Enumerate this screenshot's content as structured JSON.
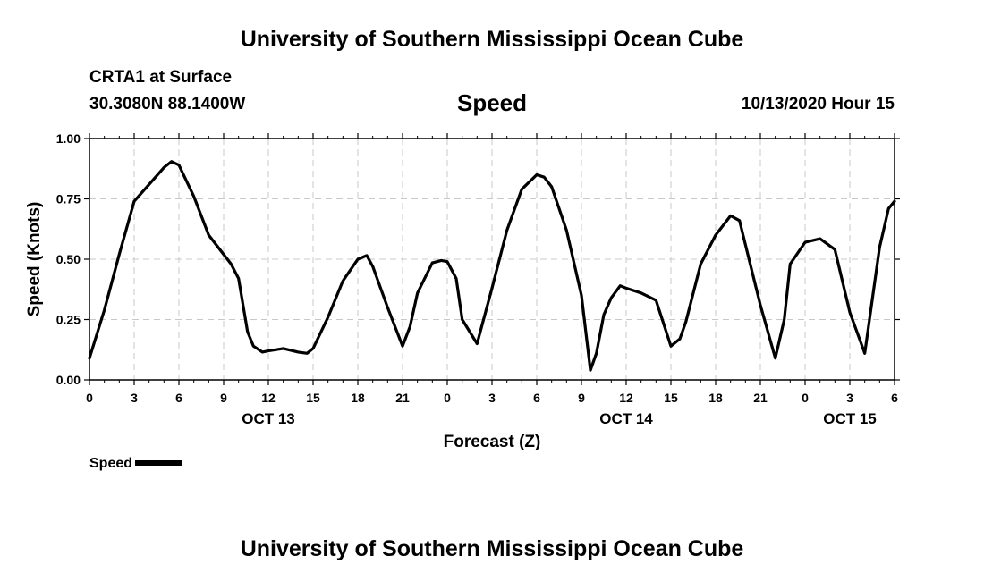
{
  "header": {
    "title": "University of Southern Mississippi Ocean Cube",
    "station": "CRTA1 at Surface",
    "coords": "30.3080N 88.1400W",
    "variable": "Speed",
    "datetime": "10/13/2020 Hour 15"
  },
  "footer": {
    "title": "University of Southern Mississippi Ocean Cube"
  },
  "legend": {
    "label": "Speed"
  },
  "chart_data": {
    "type": "line",
    "title": "Speed",
    "xlabel": "Forecast (Z)",
    "ylabel": "Speed (Knots)",
    "xlim": [
      0,
      54
    ],
    "ylim": [
      0,
      1.0
    ],
    "grid": true,
    "legend_position": "bottom-left",
    "x_ticks": [
      0,
      3,
      6,
      9,
      12,
      15,
      18,
      21,
      24,
      27,
      30,
      33,
      36,
      39,
      42,
      45,
      48,
      51,
      54
    ],
    "x_tick_labels": [
      "0",
      "3",
      "6",
      "9",
      "12",
      "15",
      "18",
      "21",
      "0",
      "3",
      "6",
      "9",
      "12",
      "15",
      "18",
      "21",
      "0",
      "3",
      "6"
    ],
    "y_ticks": [
      0,
      0.25,
      0.5,
      0.75,
      1.0
    ],
    "y_tick_labels": [
      "0.00",
      "0.25",
      "0.50",
      "0.75",
      "1.00"
    ],
    "date_labels": [
      {
        "x": 12,
        "label": "OCT 13"
      },
      {
        "x": 36,
        "label": "OCT 14"
      },
      {
        "x": 51,
        "label": "OCT 15"
      }
    ],
    "series": [
      {
        "name": "Speed",
        "color": "#000000",
        "x": [
          0,
          1,
          2,
          3,
          4,
          5,
          5.5,
          6,
          7,
          8,
          9,
          9.5,
          10,
          10.6,
          11,
          11.6,
          12,
          13,
          14,
          14.6,
          15,
          16,
          17,
          18,
          18.6,
          19,
          20,
          21,
          21.5,
          22,
          23,
          23.6,
          24,
          24.6,
          25,
          26,
          27,
          28,
          29,
          30,
          30.5,
          31,
          32,
          33,
          33.6,
          34,
          34.5,
          35,
          35.6,
          36,
          37,
          38,
          39,
          39.6,
          40,
          41,
          42,
          43,
          43.6,
          44,
          45,
          46,
          46.6,
          47,
          48,
          49,
          50,
          51,
          52,
          53,
          53.6,
          54
        ],
        "y": [
          0.09,
          0.29,
          0.52,
          0.74,
          0.81,
          0.88,
          0.905,
          0.89,
          0.76,
          0.6,
          0.52,
          0.48,
          0.42,
          0.2,
          0.14,
          0.115,
          0.12,
          0.13,
          0.115,
          0.11,
          0.13,
          0.26,
          0.41,
          0.5,
          0.515,
          0.47,
          0.3,
          0.14,
          0.22,
          0.36,
          0.485,
          0.495,
          0.49,
          0.42,
          0.25,
          0.15,
          0.38,
          0.62,
          0.79,
          0.85,
          0.84,
          0.8,
          0.62,
          0.35,
          0.04,
          0.11,
          0.27,
          0.34,
          0.39,
          0.38,
          0.36,
          0.33,
          0.14,
          0.17,
          0.24,
          0.48,
          0.6,
          0.68,
          0.66,
          0.56,
          0.31,
          0.09,
          0.25,
          0.48,
          0.57,
          0.585,
          0.54,
          0.28,
          0.11,
          0.55,
          0.71,
          0.74
        ]
      }
    ]
  }
}
